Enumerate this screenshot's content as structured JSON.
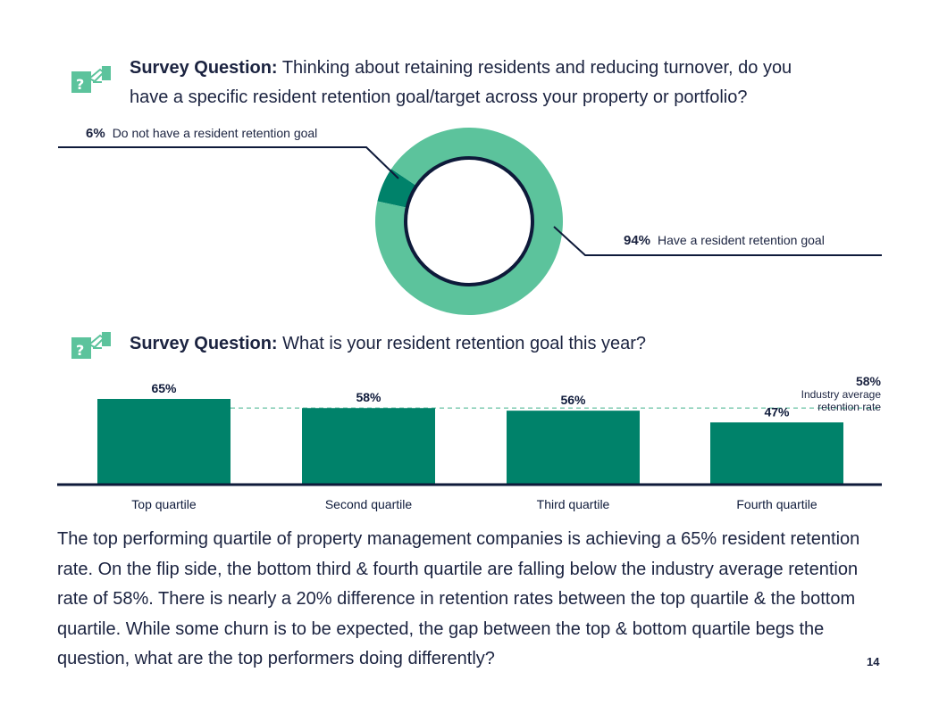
{
  "question1": {
    "prefix": "Survey Question:",
    "text_line1": "Thinking about retaining residents and reducing turnover, do you",
    "text_line2": "have a specific resident retention goal/target across your property or portfolio?"
  },
  "question2": {
    "prefix": "Survey Question:",
    "text": "What is your resident retention goal this year?"
  },
  "icon": "question-hand-icon",
  "colors": {
    "light_green": "#5cc39c",
    "dark_green": "#00826a",
    "navy": "#0e1a3a",
    "dashed": "#7fcbb2"
  },
  "chart_data": [
    {
      "type": "pie",
      "variant": "donut",
      "slices": [
        {
          "label": "Do not have a resident retention goal",
          "value": 6,
          "display": "6%"
        },
        {
          "label": "Have a resident retention goal",
          "value": 94,
          "display": "94%"
        }
      ]
    },
    {
      "type": "bar",
      "categories": [
        "Top quartile",
        "Second quartile",
        "Third quartile",
        "Fourth quartile"
      ],
      "values": [
        65,
        58,
        56,
        47
      ],
      "value_labels": [
        "65%",
        "58%",
        "56%",
        "47%"
      ],
      "reference_line": {
        "value": 58,
        "label_value": "58%",
        "label_line1": "Industry average",
        "label_line2": "retention rate"
      },
      "ylim": [
        0,
        68
      ]
    }
  ],
  "body_text": "The top performing quartile of property management companies is achieving a 65% resident retention rate. On the flip side, the bottom third & fourth quartile are falling below the industry average retention rate of 58%. There is nearly a 20% difference in retention rates between the top quartile & the bottom quartile. While some churn is to be expected, the gap between the top & bottom quartile begs the question, what are the top performers doing differently?",
  "page_number": "14"
}
